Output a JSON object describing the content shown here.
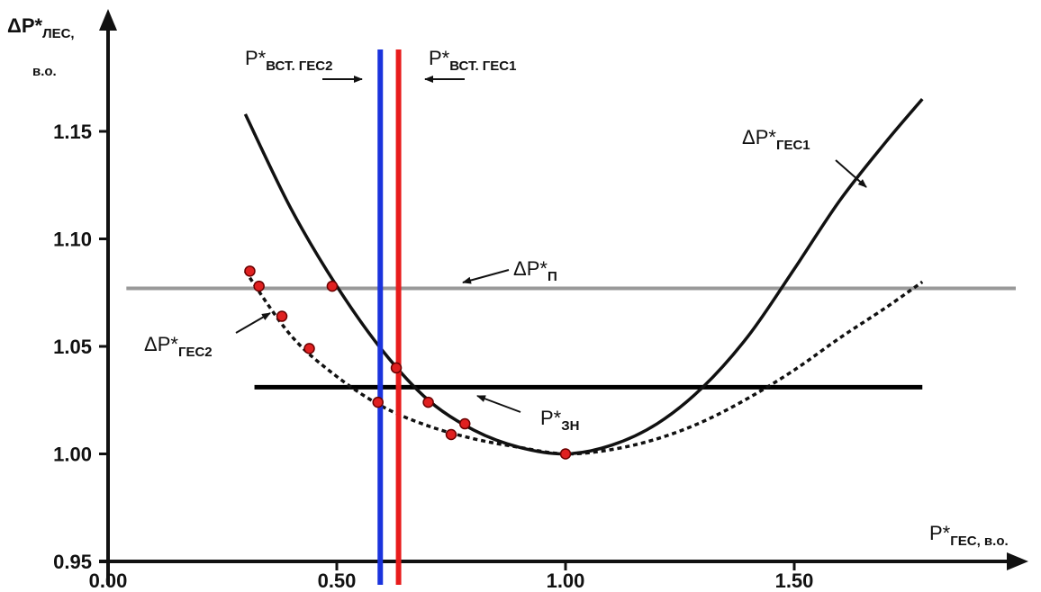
{
  "chart_data": {
    "type": "line",
    "xlim": [
      0.0,
      2.0
    ],
    "ylim": [
      0.95,
      1.19
    ],
    "x_ticks": [
      "0.00",
      "0.50",
      "1.00",
      "1.50"
    ],
    "y_ticks": [
      "0.95",
      "1.00",
      "1.05",
      "1.10",
      "1.15"
    ],
    "ylabel": {
      "main": "ΔP*",
      "sub": "ЛЕС,",
      "line2": "в.о."
    },
    "xlabel": {
      "main": "P*",
      "sub": "ГЕС, в.о."
    },
    "grid": false,
    "series": [
      {
        "name_main": "ΔP*",
        "name_sub": "ГЕС1",
        "style": "solid",
        "color": "#111111",
        "x": [
          0.3,
          0.4,
          0.5,
          0.6,
          0.7,
          0.8,
          0.9,
          1.0,
          1.1,
          1.2,
          1.3,
          1.4,
          1.5,
          1.6,
          1.7,
          1.78
        ],
        "y": [
          1.158,
          1.114,
          1.078,
          1.048,
          1.025,
          1.011,
          1.003,
          1.0,
          1.004,
          1.014,
          1.031,
          1.055,
          1.086,
          1.118,
          1.145,
          1.165
        ]
      },
      {
        "name_main": "ΔP*",
        "name_sub": "ГЕС2",
        "style": "dashed",
        "color": "#111111",
        "x": [
          0.3,
          0.4,
          0.5,
          0.6,
          0.7,
          0.8,
          0.9,
          1.0,
          1.1,
          1.2,
          1.3,
          1.4,
          1.5,
          1.6,
          1.7,
          1.78
        ],
        "y": [
          1.085,
          1.055,
          1.036,
          1.022,
          1.013,
          1.007,
          1.003,
          1.0,
          1.002,
          1.007,
          1.015,
          1.026,
          1.039,
          1.054,
          1.068,
          1.08
        ]
      }
    ],
    "markers": {
      "color": "#e02020",
      "points": [
        {
          "x": 0.31,
          "y": 1.085
        },
        {
          "x": 0.33,
          "y": 1.078
        },
        {
          "x": 0.38,
          "y": 1.064
        },
        {
          "x": 0.44,
          "y": 1.049
        },
        {
          "x": 0.49,
          "y": 1.078
        },
        {
          "x": 0.59,
          "y": 1.024
        },
        {
          "x": 0.63,
          "y": 1.04
        },
        {
          "x": 0.7,
          "y": 1.024
        },
        {
          "x": 0.75,
          "y": 1.009
        },
        {
          "x": 0.78,
          "y": 1.014
        },
        {
          "x": 1.0,
          "y": 1.0
        }
      ]
    },
    "hlines": [
      {
        "id": "dp-p",
        "y": 1.077,
        "x_from": 0.04,
        "x_to": 2.0,
        "color": "#999999",
        "label_main": "ΔP*",
        "label_sub": "П"
      },
      {
        "id": "p-zn",
        "y": 1.031,
        "x_from": 0.32,
        "x_to": 1.78,
        "color": "#000000",
        "label_main": "P*",
        "label_sub": "ЗН"
      }
    ],
    "vlines": [
      {
        "id": "vst-ges2",
        "x": 0.595,
        "color": "#1a33dd",
        "label_main": "P*",
        "label_sub": "ВСТ. ГЕС2"
      },
      {
        "id": "vst-ges1",
        "x": 0.635,
        "color": "#e81c1c",
        "label_main": "P*",
        "label_sub": "ВСТ. ГЕС1"
      }
    ]
  }
}
